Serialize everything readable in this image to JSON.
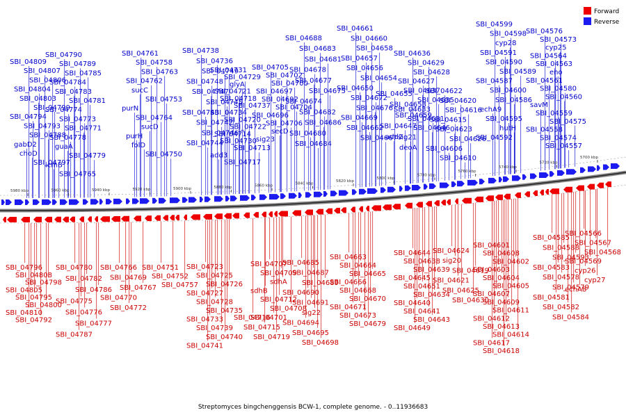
{
  "legend": {
    "forward": {
      "label": "Forward",
      "color": "#ee0000"
    },
    "reverse": {
      "label": "Reverse",
      "color": "#1c1cf0"
    }
  },
  "caption": "Streptomyces bingchenggensis BCW-1, complete genome. - 0..11936683",
  "scale_ticks": [
    "5980 kbp",
    "5960 kbp",
    "5940 kbp",
    "5920 kbp",
    "5900 kbp",
    "5880 kbp",
    "5860 kbp",
    "5840 kbp",
    "5820 kbp",
    "5800 kbp",
    "5780 kbp",
    "5760 kbp",
    "5740 kbp",
    "5720 kbp",
    "5700 kbp"
  ],
  "reverse_labels": [
    "SBI_04809",
    "SBI_04807",
    "SBI_04806",
    "SBI_04804",
    "SBI_04803",
    "SBI_04799",
    "SBI_04794",
    "SBI_04793",
    "SBI_04788",
    "gabD2",
    "choD",
    "SBI_04797",
    "SBI_04790",
    "SBI_04789",
    "SBI_04785",
    "SBI_04784",
    "SBI_04783",
    "SBI_04781",
    "SBI_04774",
    "SBI_04773",
    "SBI_04771",
    "SBI_04778",
    "guaA",
    "SBI_04779",
    "icmB",
    "SBI_04765",
    "SBI_04761",
    "SBI_04758",
    "SBI_04763",
    "SBI_04762",
    "sucC",
    "SBI_04753",
    "purN",
    "SBI_04764",
    "sucD",
    "purH",
    "folD",
    "SBI_04750",
    "SBI_04738",
    "SBI_04736",
    "SBI_04749",
    "SBI_04748",
    "SBI_04747",
    "SBI_04745",
    "SBI_04743",
    "SBI_04742",
    "SBI_04746",
    "SBI_04744",
    "SBI_04731",
    "SBI_04729",
    "glyA",
    "SBI_04721",
    "SBI_04718",
    "SBI_04737",
    "SBI_04734",
    "SBI_04720",
    "SBI_04722",
    "SBI_04714",
    "SBI_04730",
    "SBI_04713",
    "add3",
    "SBI_04717",
    "SBI_04705",
    "SBI_04702",
    "SBI_04700",
    "SBI_04697",
    "SBI_04692",
    "SBI_04704",
    "SBI_04696",
    "SBI_04706",
    "secD",
    "sig23",
    "SBI_04688",
    "SBI_04683",
    "SBI_04681",
    "SBI_04678",
    "SBI_04677",
    "SBI_04675",
    "SBI_04674",
    "SBI_04682",
    "SBI_04686",
    "SBI_04680",
    "SBI_04684",
    "SBI_04661",
    "SBI_04660",
    "SBI_04658",
    "SBI_04657",
    "SBI_04656",
    "SBI_04654",
    "SBI_04650",
    "SBI_04672",
    "SBI_04676",
    "SBI_04669",
    "SBI_04662",
    "SBI_04667",
    "SBI_04655",
    "SBI_04653",
    "SBI_04659",
    "SBI_04647",
    "add2",
    "deoA",
    "SBI_04636",
    "SBI_04629",
    "SBI_04628",
    "SBI_04627",
    "SBI_04637",
    "SBI_04635",
    "SBI_04633",
    "SBI_04631",
    "SBI_04646",
    "sig21",
    "SBI_04622",
    "SBI_04620",
    "SBI_04616",
    "SBI_04615",
    "SBI_04623",
    "SBI_04626",
    "SBI_04606",
    "SBI_04610",
    "SBI_04599",
    "SBI_04598",
    "cyp28",
    "SBI_04591",
    "SBI_04590",
    "SBI_04589",
    "SBI_04587",
    "SBI_04600",
    "SBI_04586",
    "echA9",
    "SBI_04595",
    "hutH",
    "SBI_04592",
    "SBI_04576",
    "SBI_04573",
    "cyp25",
    "SBI_04564",
    "SBI_04563",
    "eno",
    "SBI_04561",
    "SBI_04580",
    "SBI_04560",
    "savM",
    "SBI_04559",
    "SBI_04575",
    "SBI_04558",
    "SBI_04574",
    "SBI_04557"
  ],
  "forward_labels": [
    "SBI_04796",
    "SBI_04808",
    "SBI_04798",
    "SBI_04805",
    "SBI_04795",
    "SBI_04800",
    "SBI_04810",
    "SBI_04792",
    "SBI_04780",
    "SBI_04782",
    "SBI_04786",
    "SBI_04775",
    "SBI_04776",
    "SBI_04777",
    "SBI_04787",
    "SBI_04766",
    "SBI_04769",
    "SBI_04767",
    "SBI_04770",
    "SBI_04772",
    "SBI_04751",
    "SBI_04752",
    "SBI_04757",
    "SBI_04723",
    "SBI_04725",
    "SBI_04726",
    "SBI_04727",
    "SBI_04728",
    "SBI_04735",
    "SBI_04733",
    "SBI_04739",
    "SBI_04740",
    "SBI_04741",
    "SBI_04716",
    "SBI_04715",
    "SBI_04719",
    "SBI_04707",
    "SBI_04709",
    "sdhA",
    "sdhB",
    "SBI_04712",
    "SBI_04708",
    "SBI_04701",
    "SBI_04685",
    "SBI_04687",
    "SBI_04689",
    "SBI_04690",
    "SBI_04691",
    "sig22",
    "SBI_04694",
    "SBI_04695",
    "SBI_04698",
    "SBI_04663",
    "SBI_04664",
    "SBI_04665",
    "SBI_04666",
    "SBI_04668",
    "SBI_04670",
    "SBI_04671",
    "SBI_04673",
    "SBI_04679",
    "SBI_04644",
    "SBI_04638",
    "SBI_04639",
    "SBI_04645",
    "SBI_04651",
    "SBI_04634",
    "SBI_04640",
    "SBI_04641",
    "SBI_04643",
    "SBI_04649",
    "SBI_04624",
    "sig20",
    "SBI_04619",
    "SBI_04621",
    "SBI_04625",
    "SBI_04630",
    "SBI_04601",
    "SBI_04608",
    "SBI_04602",
    "SBI_04603",
    "SBI_04604",
    "SBI_04605",
    "SBI_04607",
    "SBI_04609",
    "SBI_04611",
    "SBI_04612",
    "SBI_04613",
    "SBI_04614",
    "SBI_04617",
    "SBI_04618",
    "SBI_04585",
    "SBI_04588",
    "SBI_04593",
    "SBI_04583",
    "SBI_04578",
    "SBI_04579",
    "SBI_04581",
    "SBI_04582",
    "SBI_04584",
    "SBI_04566",
    "SBI_04567",
    "SBI_04568",
    "SBI_04569",
    "cyp26",
    "cyp27",
    "echA8"
  ]
}
